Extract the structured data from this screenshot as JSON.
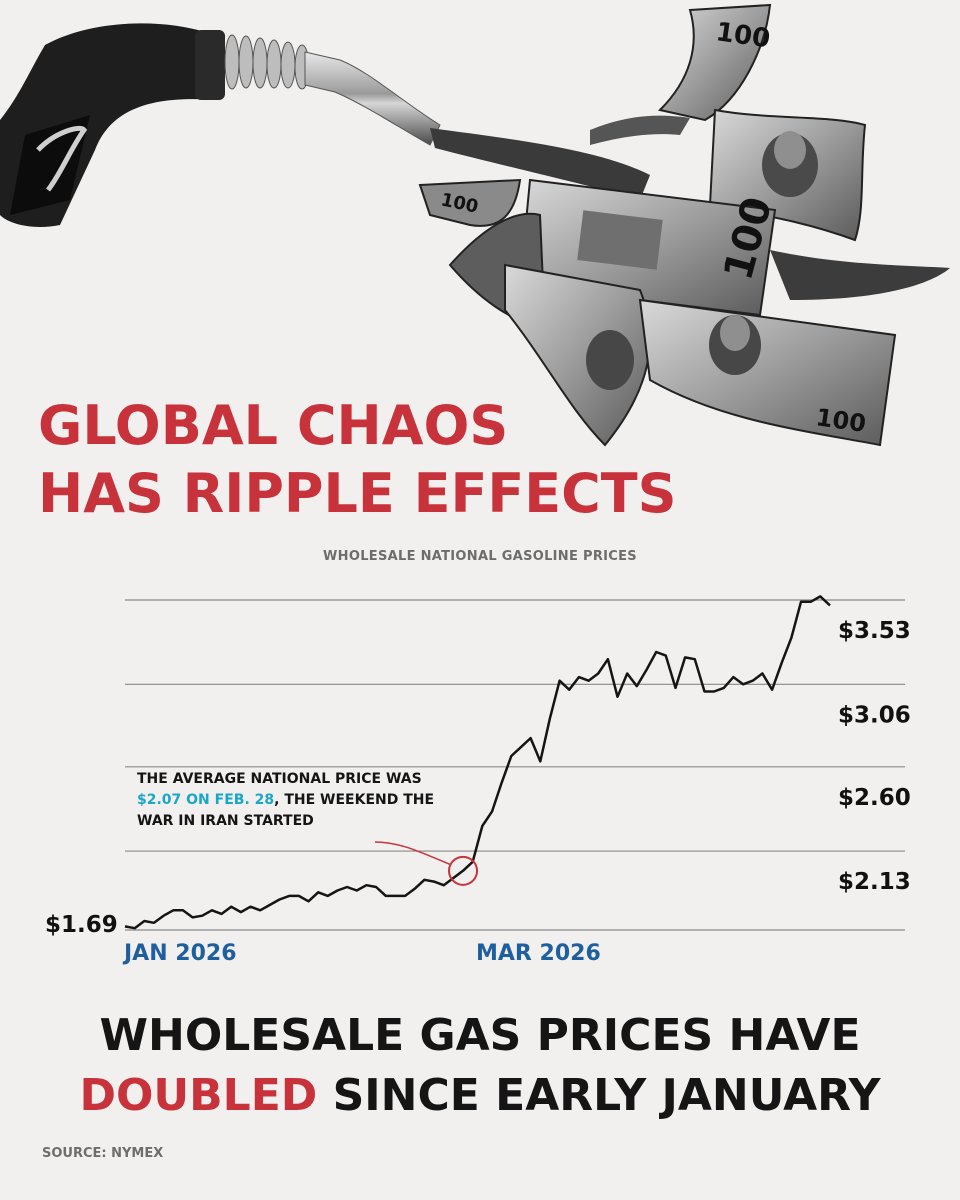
{
  "headline": {
    "line1": "GLOBAL CHAOS",
    "line2": "HAS RIPPLE EFFECTS"
  },
  "illustration": {
    "description_icon": "gas-pump-nozzle-with-flying-100-dollar-bills-icon",
    "bill_denomination": "100"
  },
  "chart_data": {
    "type": "line",
    "title": "WHOLESALE NATIONAL GASOLINE PRICES",
    "x_labels": [
      "JAN 2026",
      "MAR 2026"
    ],
    "y_ticks": [
      "$1.69",
      "$2.13",
      "$2.60",
      "$3.06",
      "$3.53"
    ],
    "ylim": [
      1.69,
      3.53
    ],
    "grid": true,
    "annotation": {
      "prefix": "THE AVERAGE NATIONAL PRICE WAS ",
      "highlight": "$2.07 ON FEB. 28",
      "suffix": ", THE WEEKEND THE WAR IN IRAN STARTED"
    },
    "series": [
      {
        "values": [
          1.71,
          1.7,
          1.74,
          1.73,
          1.77,
          1.8,
          1.8,
          1.76,
          1.77,
          1.8,
          1.78,
          1.82,
          1.79,
          1.82,
          1.8,
          1.83,
          1.86,
          1.88,
          1.88,
          1.85,
          1.9,
          1.88,
          1.91,
          1.93,
          1.91,
          1.94,
          1.93,
          1.88,
          1.88,
          1.88,
          1.92,
          1.97,
          1.96,
          1.94,
          1.98,
          2.02,
          2.07,
          2.27,
          2.35,
          2.51,
          2.66,
          2.71,
          2.76,
          2.63,
          2.87,
          3.08,
          3.03,
          3.1,
          3.08,
          3.12,
          3.2,
          2.99,
          3.12,
          3.05,
          3.14,
          3.24,
          3.22,
          3.04,
          3.21,
          3.2,
          3.02,
          3.02,
          3.04,
          3.1,
          3.06,
          3.08,
          3.12,
          3.03,
          3.18,
          3.32,
          3.52,
          3.52,
          3.55,
          3.5
        ]
      }
    ]
  },
  "bottom_headline": {
    "line1": "WHOLESALE GAS PRICES HAVE",
    "highlight": "DOUBLED",
    "line2_rest": " SINCE EARLY JANUARY"
  },
  "source": "SOURCE: NYMEX",
  "colors": {
    "background": "#f1f0ef",
    "accent_red": "#c8323b",
    "x_label_blue": "#1f5fa0",
    "highlight_cyan": "#1aa6c8",
    "line": "#151515",
    "grid": "#8a8a8a"
  }
}
